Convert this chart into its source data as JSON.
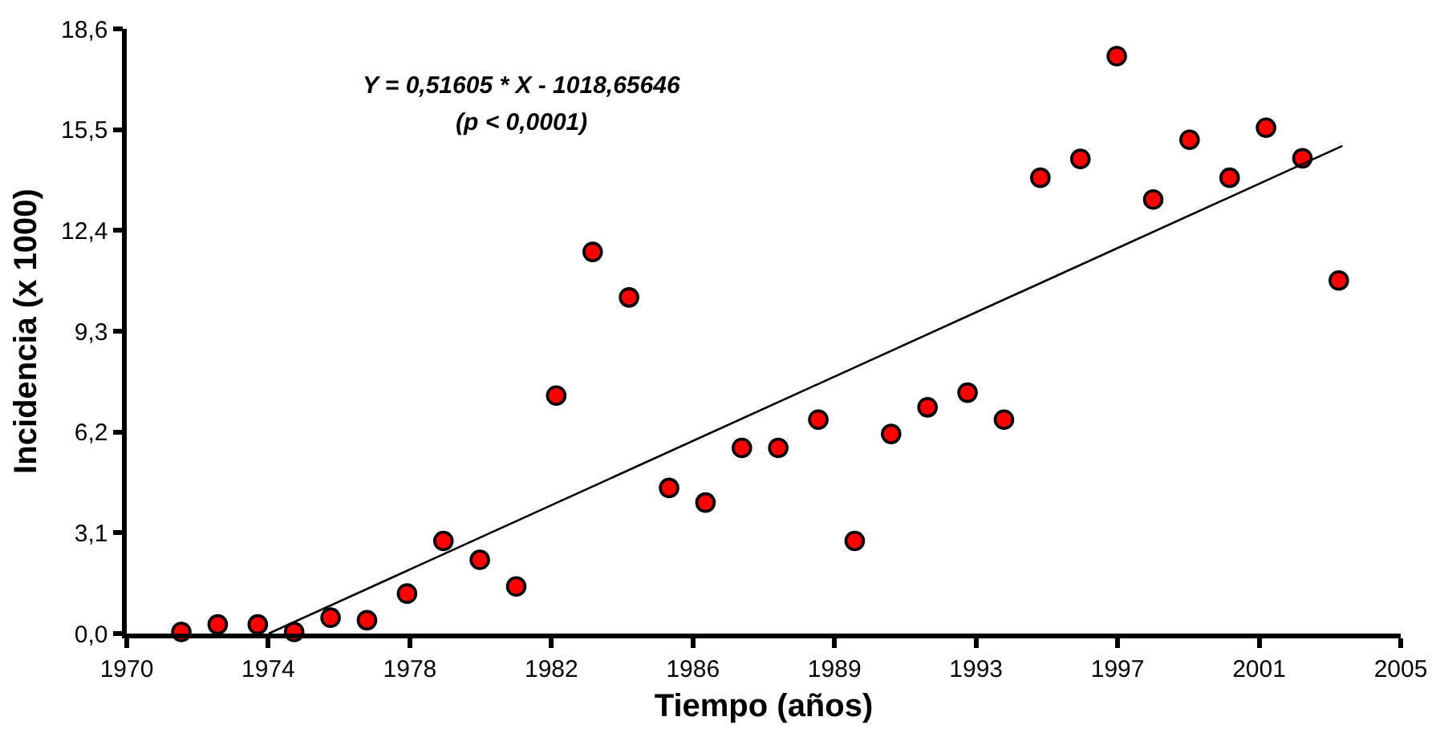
{
  "chart_data": {
    "type": "scatter",
    "xlabel": "Tiempo (años)",
    "ylabel": "Incidencia (x 1000)",
    "annotations": [
      "Y = 0,51605 * X - 1018,65646",
      "(p < 0,0001)"
    ],
    "xlim": [
      1970,
      2005
    ],
    "xticks": [
      {
        "value": 1970,
        "label": "1970"
      },
      {
        "value": 1973.889,
        "label": "1974"
      },
      {
        "value": 1977.778,
        "label": "1978"
      },
      {
        "value": 1981.667,
        "label": "1982"
      },
      {
        "value": 1985.556,
        "label": "1986"
      },
      {
        "value": 1989.444,
        "label": "1989"
      },
      {
        "value": 1993.333,
        "label": "1993"
      },
      {
        "value": 1997.222,
        "label": "1997"
      },
      {
        "value": 2001.111,
        "label": "2001"
      },
      {
        "value": 2005,
        "label": "2005"
      }
    ],
    "ylim": [
      0,
      18.6
    ],
    "yticks": [
      {
        "value": 0,
        "label": "0,0"
      },
      {
        "value": 3.1,
        "label": "3,1"
      },
      {
        "value": 6.2,
        "label": "6,2"
      },
      {
        "value": 9.3,
        "label": "9,3"
      },
      {
        "value": 12.4,
        "label": "12,4"
      },
      {
        "value": 15.5,
        "label": "15,5"
      },
      {
        "value": 18.6,
        "label": "18,6"
      }
    ],
    "grid": false,
    "series": [
      {
        "marker": "circle",
        "color": "#ff0000",
        "x": [
          1971.5,
          1972.5,
          1973.6,
          1974.6,
          1975.6,
          1976.6,
          1977.7,
          1978.7,
          1979.7,
          1980.7,
          1981.8,
          1982.8,
          1983.8,
          1984.9,
          1985.9,
          1986.9,
          1987.9,
          1989.0,
          1990.0,
          1991.0,
          1992.0,
          1993.1,
          1994.1,
          1995.1,
          1996.2,
          1997.2,
          1998.2,
          1999.2,
          2000.3,
          2001.3,
          2002.3,
          2003.3
        ],
        "values": [
          0.05,
          0.28,
          0.28,
          0.05,
          0.49,
          0.41,
          1.23,
          2.85,
          2.27,
          1.45,
          7.32,
          11.74,
          10.34,
          4.48,
          4.03,
          5.71,
          5.71,
          6.58,
          2.85,
          6.14,
          6.96,
          7.41,
          6.58,
          14.02,
          14.6,
          17.76,
          13.35,
          15.19,
          14.02,
          15.56,
          14.62,
          10.86
        ]
      },
      {
        "type": "line",
        "color": "#000000",
        "x": [
          1973.9,
          2003.4
        ],
        "values": [
          0.0,
          15.0
        ]
      }
    ]
  }
}
